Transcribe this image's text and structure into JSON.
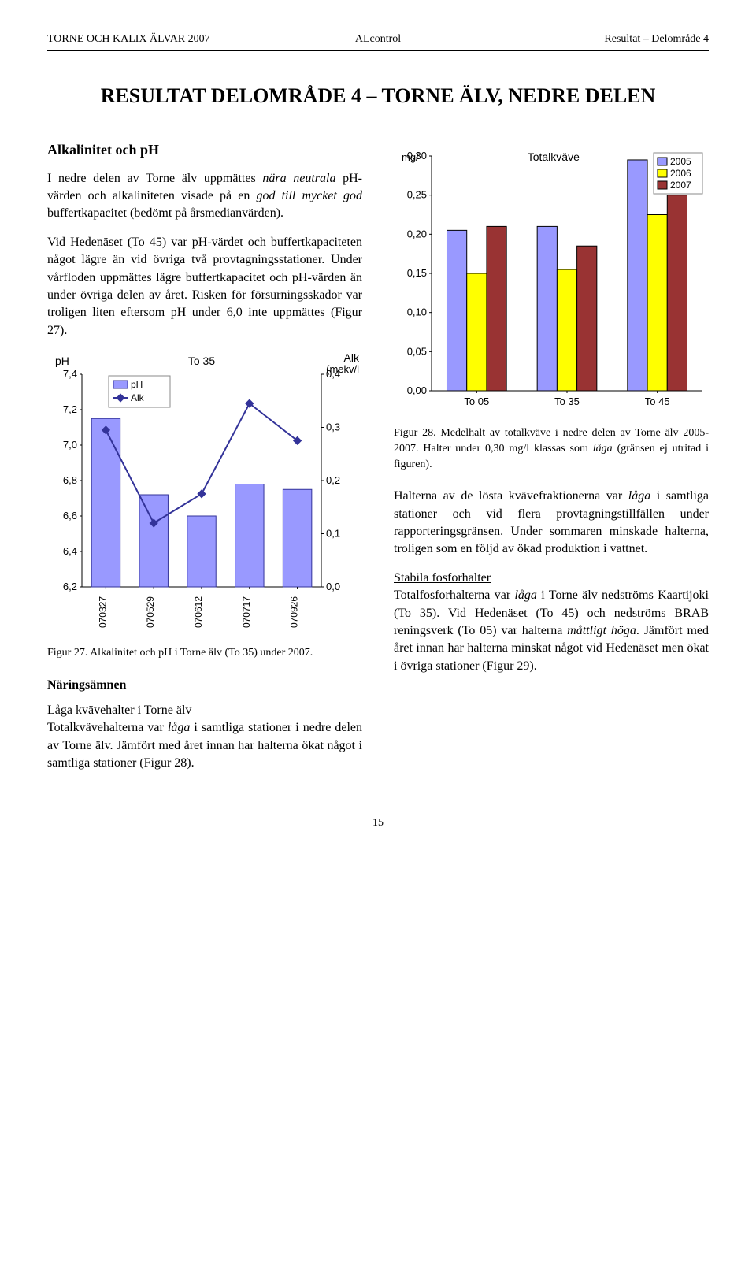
{
  "header": {
    "left": "TORNE OCH KALIX ÄLVAR 2007",
    "mid": "ALcontrol",
    "right": "Resultat – Delområde 4"
  },
  "title": "RESULTAT DELOMRÅDE 4 – TORNE ÄLV, NEDRE DELEN",
  "left_col": {
    "h2": "Alkalinitet och pH",
    "p1": "I nedre delen av Torne älv uppmättes nära neutrala pH-värden och alkaliniteten visade på en god till mycket god buffertkapacitet (bedömt på årsmedianvärden).",
    "p2": "Vid Hedenäset (To 45) var pH-värdet och buffertkapaciteten något lägre än vid övriga två provtagningsstationer. Under vårfloden uppmättes lägre buffertkapacitet och pH-värden än under övriga delen av året. Risken för försurningsskador var troligen liten eftersom pH under 6,0 inte uppmättes (Figur 27).",
    "chart27": {
      "title_left": "pH",
      "title_mid": "To 35",
      "title_right": "Alk (mekv/l",
      "legend": [
        "pH",
        "Alk"
      ],
      "x": [
        "070327",
        "070529",
        "070612",
        "070717",
        "070926"
      ],
      "ph": [
        7.15,
        6.72,
        6.6,
        6.78,
        6.75
      ],
      "alk": [
        0.295,
        0.12,
        0.175,
        0.345,
        0.275
      ],
      "ph_min": 6.2,
      "ph_max": 7.4,
      "ph_tick": 0.2,
      "alk_min": 0,
      "alk_max": 0.4,
      "alk_tick": 0.1,
      "bar_color": "#9999ff",
      "bar_border": "#333399",
      "line_color": "#333399",
      "marker_color": "#333399",
      "bg": "#ffffff"
    },
    "fig27_caption": "Figur 27. Alkalinitet och pH i Torne älv (To 35) under 2007.",
    "h3": "Näringsämnen",
    "p3_u": "Låga kvävehalter i Torne älv",
    "p3": "Totalkvävehalterna var låga i samtliga stationer i nedre delen av Torne älv. Jämfört med året innan har halterna ökat något i samtliga stationer (Figur 28)."
  },
  "right_col": {
    "chart28": {
      "ylabel": "mg/",
      "title": "Totalkväve",
      "legend": [
        "2005",
        "2006",
        "2007"
      ],
      "legend_colors": [
        "#9999ff",
        "#ffff00",
        "#993333"
      ],
      "x": [
        "To 05",
        "To 35",
        "To 45"
      ],
      "vals": {
        "2005": [
          0.205,
          0.21,
          0.295
        ],
        "2006": [
          0.15,
          0.155,
          0.225
        ],
        "2007": [
          0.21,
          0.185,
          0.25
        ]
      },
      "y_min": 0,
      "y_max": 0.3,
      "y_tick": 0.05,
      "bg": "#ffffff",
      "bar_border": "#000000"
    },
    "fig28_caption": "Figur 28. Medelhalt av totalkväve i nedre delen av Torne älv 2005-2007. Halter under 0,30 mg/l klassas som låga (gränsen ej utritad i figuren).",
    "p1": "Halterna av de lösta kvävefraktionerna var låga i samtliga stationer och vid flera provtagningstillfällen under rapporteringsgränsen. Under sommaren minskade halterna, troligen som en följd av ökad produktion i vattnet.",
    "p2_u": "Stabila fosforhalter",
    "p2": "Totalfosforhalterna var låga i Torne älv nedströms Kaartijoki (To 35). Vid Hedenäset (To 45) och nedströms BRAB reningsverk (To 05) var halterna måttligt höga. Jämfört med året innan har halterna minskat något vid Hedenäset men ökat i övriga stationer (Figur 29)."
  },
  "pagenum": "15"
}
